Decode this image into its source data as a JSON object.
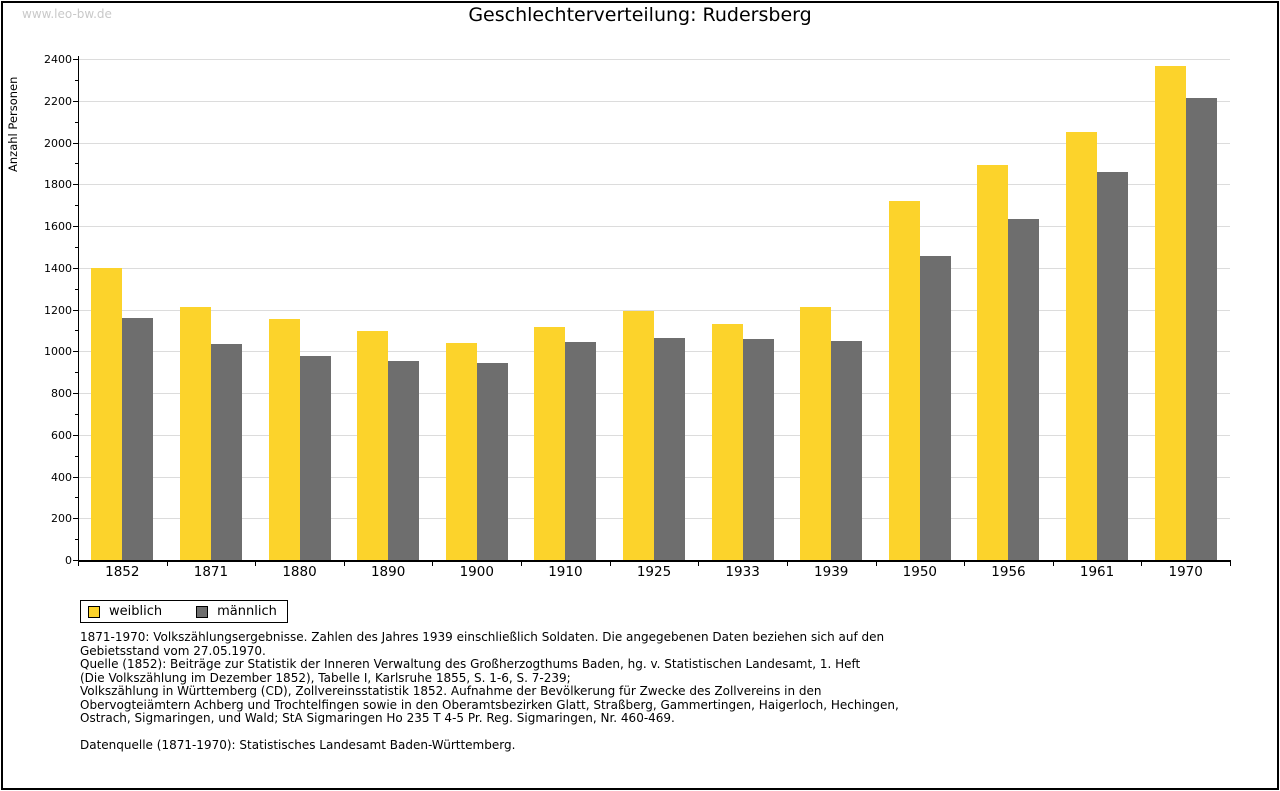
{
  "watermark": "www.leo-bw.de",
  "title": "Geschlechterverteilung: Rudersberg",
  "chart_data": {
    "type": "bar",
    "title": "Geschlechterverteilung: Rudersberg",
    "xlabel": "",
    "ylabel": "Anzahl Personen",
    "ylim": [
      0,
      2400
    ],
    "ytick_step": 200,
    "ytick_minor_step": 100,
    "grid": true,
    "gridline_color": "#dcdcdc",
    "legend_position": "bottom-left",
    "categories": [
      "1852",
      "1871",
      "1880",
      "1890",
      "1900",
      "1910",
      "1925",
      "1933",
      "1939",
      "1950",
      "1956",
      "1961",
      "1970"
    ],
    "series": [
      {
        "name": "weiblich",
        "color": "#FCD32B",
        "values": [
          1400,
          1210,
          1155,
          1095,
          1040,
          1115,
          1195,
          1130,
          1210,
          1720,
          1890,
          2050,
          2365
        ]
      },
      {
        "name": "männlich",
        "color": "#6E6E6E",
        "values": [
          1160,
          1035,
          975,
          955,
          945,
          1045,
          1065,
          1060,
          1050,
          1455,
          1635,
          1860,
          2215
        ]
      }
    ]
  },
  "footnote_lines": [
    "1871-1970: Volkszählungsergebnisse. Zahlen des Jahres 1939 einschließlich Soldaten. Die angegebenen Daten beziehen sich auf den",
    "Gebietsstand vom 27.05.1970.",
    "Quelle (1852): Beiträge zur Statistik der Inneren Verwaltung des Großherzogthums Baden, hg. v. Statistischen Landesamt, 1. Heft",
    "(Die Volkszählung im Dezember 1852), Tabelle I, Karlsruhe 1855, S. 1-6, S. 7-239;",
    "Volkszählung in Württemberg (CD), Zollvereinsstatistik 1852. Aufnahme der Bevölkerung für Zwecke des Zollvereins in den",
    "Obervogteiämtern Achberg und Trochtelfingen sowie in den Oberamtsbezirken Glatt, Straßberg, Gammertingen, Haigerloch, Hechingen,",
    "Ostrach, Sigmaringen, und Wald; StA Sigmaringen Ho 235 T 4-5 Pr. Reg. Sigmaringen, Nr. 460-469."
  ],
  "datasource_line": "Datenquelle (1871-1970): Statistisches Landesamt Baden-Württemberg."
}
